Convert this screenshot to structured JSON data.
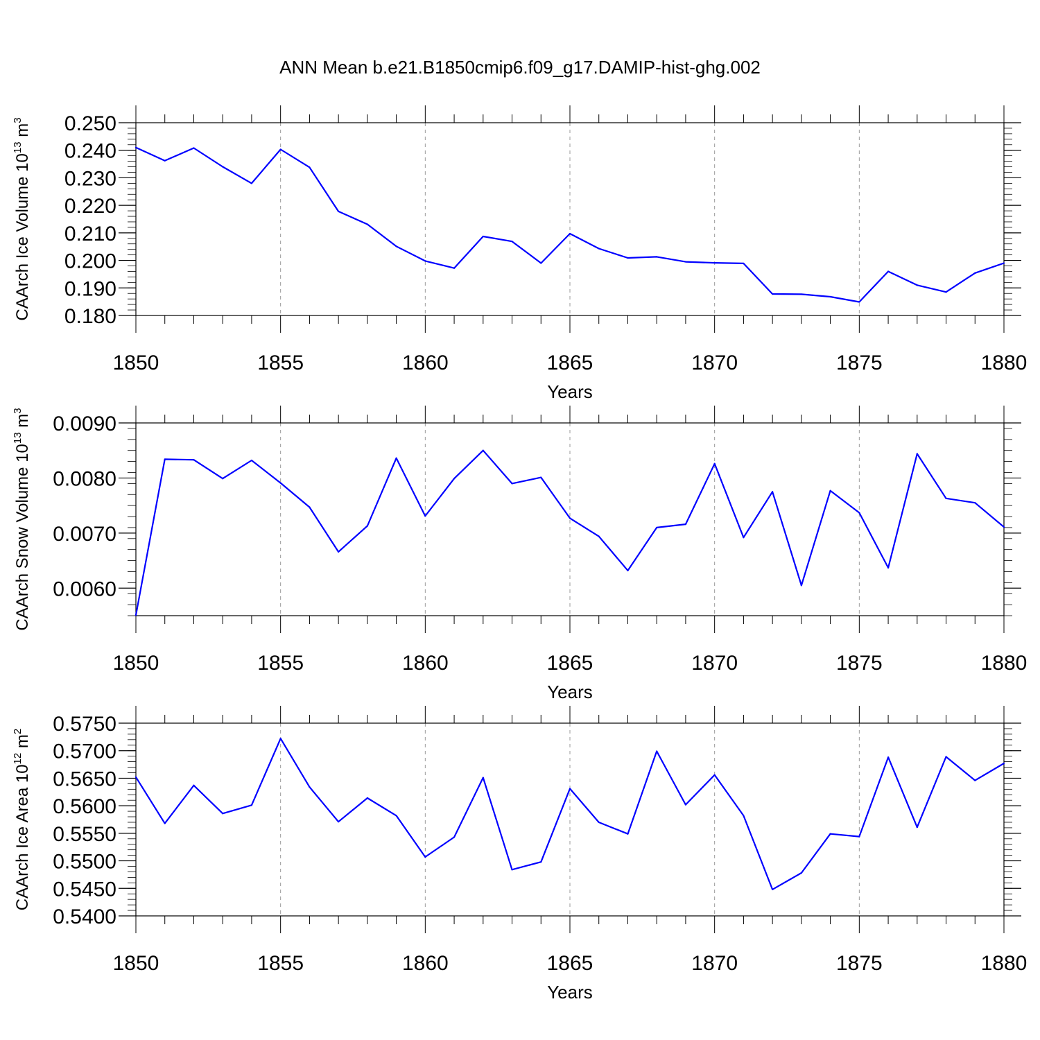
{
  "title": "ANN Mean b.e21.B1850cmip6.f09_g17.DAMIP-hist-ghg.002",
  "line_color": "#0000ff",
  "chart_data": [
    {
      "type": "line",
      "ylabel": {
        "text": "CAArch Ice Volume 10",
        "exp": "13",
        "unit": "m",
        "unit_exp": "3"
      },
      "xlabel": "Years",
      "xlim": [
        1850,
        1880
      ],
      "ylim": [
        0.18,
        0.25
      ],
      "x_ticks": [
        1850,
        1855,
        1860,
        1865,
        1870,
        1875,
        1880
      ],
      "x_tick_labels": [
        "1850",
        "1855",
        "1860",
        "1865",
        "1870",
        "1875",
        "1880"
      ],
      "y_ticks": [
        0.18,
        0.19,
        0.2,
        0.21,
        0.22,
        0.23,
        0.24,
        0.25
      ],
      "y_tick_labels": [
        "0.180",
        "0.190",
        "0.200",
        "0.210",
        "0.220",
        "0.230",
        "0.240",
        "0.250"
      ],
      "y_minor_step": 0.002,
      "grid": "vertical dashed at major x ticks",
      "x": [
        1850,
        1851,
        1852,
        1853,
        1854,
        1855,
        1856,
        1857,
        1858,
        1859,
        1860,
        1861,
        1862,
        1863,
        1864,
        1865,
        1866,
        1867,
        1868,
        1869,
        1870,
        1871,
        1872,
        1873,
        1874,
        1875,
        1876,
        1877,
        1878,
        1879,
        1880
      ],
      "values": [
        0.241,
        0.2362,
        0.2408,
        0.234,
        0.228,
        0.2403,
        0.2338,
        0.2178,
        0.2131,
        0.2051,
        0.1998,
        0.1972,
        0.2087,
        0.2069,
        0.199,
        0.2097,
        0.2043,
        0.2009,
        0.2013,
        0.1995,
        0.1991,
        0.1989,
        0.1878,
        0.1877,
        0.1868,
        0.1849,
        0.196,
        0.191,
        0.1885,
        0.1954,
        0.199
      ]
    },
    {
      "type": "line",
      "ylabel": {
        "text": "CAArch Snow Volume 10",
        "exp": "13",
        "unit": "m",
        "unit_exp": "3"
      },
      "xlabel": "Years",
      "xlim": [
        1850,
        1880
      ],
      "ylim": [
        0.0055,
        0.009
      ],
      "x_ticks": [
        1850,
        1855,
        1860,
        1865,
        1870,
        1875,
        1880
      ],
      "x_tick_labels": [
        "1850",
        "1855",
        "1860",
        "1865",
        "1870",
        "1875",
        "1880"
      ],
      "y_ticks": [
        0.006,
        0.007,
        0.008,
        0.009
      ],
      "y_tick_labels": [
        "0.0060",
        "0.0070",
        "0.0080",
        "0.0090"
      ],
      "y_minor_step": 0.0002,
      "grid": "vertical dashed at major x ticks",
      "x": [
        1850,
        1851,
        1852,
        1853,
        1854,
        1855,
        1856,
        1857,
        1858,
        1859,
        1860,
        1861,
        1862,
        1863,
        1864,
        1865,
        1866,
        1867,
        1868,
        1869,
        1870,
        1871,
        1872,
        1873,
        1874,
        1875,
        1876,
        1877,
        1878,
        1879,
        1880
      ],
      "values": [
        0.00551,
        0.00834,
        0.00833,
        0.00799,
        0.00832,
        0.00791,
        0.00747,
        0.00666,
        0.00713,
        0.00836,
        0.00731,
        0.00799,
        0.0085,
        0.0079,
        0.00801,
        0.00727,
        0.00694,
        0.00632,
        0.0071,
        0.00716,
        0.00826,
        0.00692,
        0.00775,
        0.00605,
        0.00777,
        0.00737,
        0.00637,
        0.00844,
        0.00763,
        0.00755,
        0.00711
      ]
    },
    {
      "type": "line",
      "ylabel": {
        "text": "CAArch Ice Area 10",
        "exp": "12",
        "unit": "m",
        "unit_exp": "2"
      },
      "xlabel": "Years",
      "xlim": [
        1850,
        1880
      ],
      "ylim": [
        0.54,
        0.575
      ],
      "x_ticks": [
        1850,
        1855,
        1860,
        1865,
        1870,
        1875,
        1880
      ],
      "x_tick_labels": [
        "1850",
        "1855",
        "1860",
        "1865",
        "1870",
        "1875",
        "1880"
      ],
      "y_ticks": [
        0.54,
        0.545,
        0.55,
        0.555,
        0.56,
        0.565,
        0.57,
        0.575
      ],
      "y_tick_labels": [
        "0.5400",
        "0.5450",
        "0.5500",
        "0.5550",
        "0.5600",
        "0.5650",
        "0.5700",
        "0.5750"
      ],
      "y_minor_step": 0.001,
      "grid": "vertical dashed at major x ticks",
      "x": [
        1850,
        1851,
        1852,
        1853,
        1854,
        1855,
        1856,
        1857,
        1858,
        1859,
        1860,
        1861,
        1862,
        1863,
        1864,
        1865,
        1866,
        1867,
        1868,
        1869,
        1870,
        1871,
        1872,
        1873,
        1874,
        1875,
        1876,
        1877,
        1878,
        1879,
        1880
      ],
      "values": [
        0.5652,
        0.5568,
        0.5637,
        0.5586,
        0.5601,
        0.5722,
        0.5634,
        0.5571,
        0.5614,
        0.5582,
        0.5507,
        0.5543,
        0.5651,
        0.5484,
        0.5498,
        0.5631,
        0.557,
        0.5549,
        0.5699,
        0.5602,
        0.5656,
        0.5582,
        0.5448,
        0.5478,
        0.5549,
        0.5544,
        0.5688,
        0.5561,
        0.5689,
        0.5646,
        0.5677
      ]
    }
  ]
}
